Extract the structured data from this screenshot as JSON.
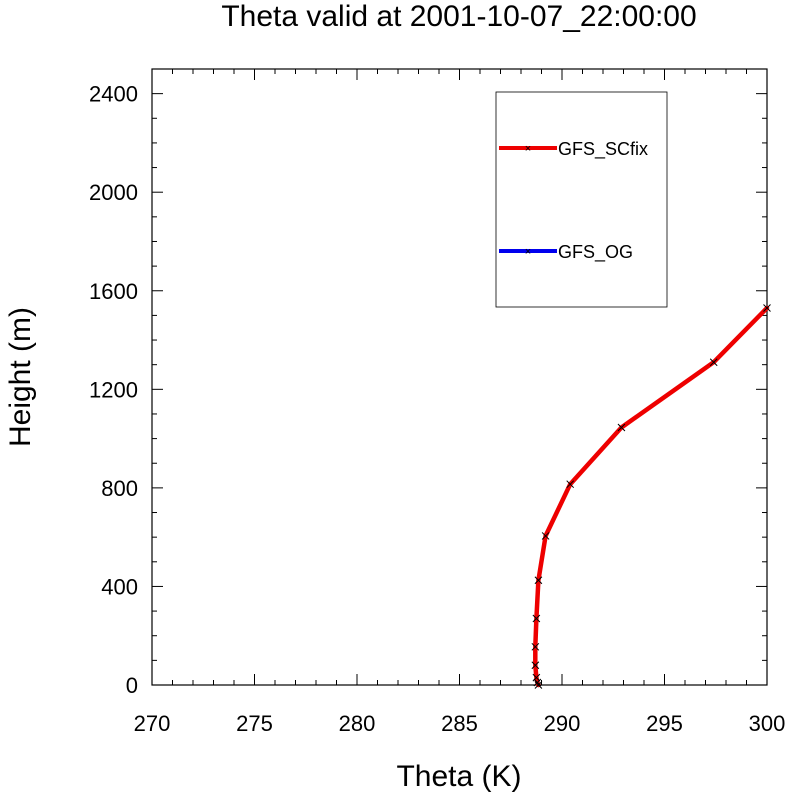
{
  "chart_data": {
    "type": "line",
    "title": "Theta valid at 2001-10-07_22:00:00",
    "xlabel": "Theta (K)",
    "ylabel": "Height (m)",
    "xlim": [
      270,
      300
    ],
    "ylim": [
      0,
      2500
    ],
    "xticks": [
      "270",
      "275",
      "280",
      "285",
      "290",
      "295",
      "300"
    ],
    "yticks": [
      "0",
      "400",
      "800",
      "1200",
      "1600",
      "2000",
      "2400"
    ],
    "legend_position": "top-right",
    "series": [
      {
        "name": "GFS_SCfix",
        "color": "#ee0000",
        "marker": "x",
        "points": [
          [
            288.85,
            0
          ],
          [
            288.8,
            10
          ],
          [
            288.75,
            30
          ],
          [
            288.7,
            80
          ],
          [
            288.7,
            155
          ],
          [
            288.75,
            270
          ],
          [
            288.85,
            425
          ],
          [
            289.2,
            605
          ],
          [
            290.4,
            815
          ],
          [
            292.9,
            1045
          ],
          [
            297.4,
            1310
          ],
          [
            300.0,
            1530
          ]
        ]
      },
      {
        "name": "GFS_OG",
        "color": "#0000ee",
        "marker": "x",
        "points": []
      }
    ]
  }
}
